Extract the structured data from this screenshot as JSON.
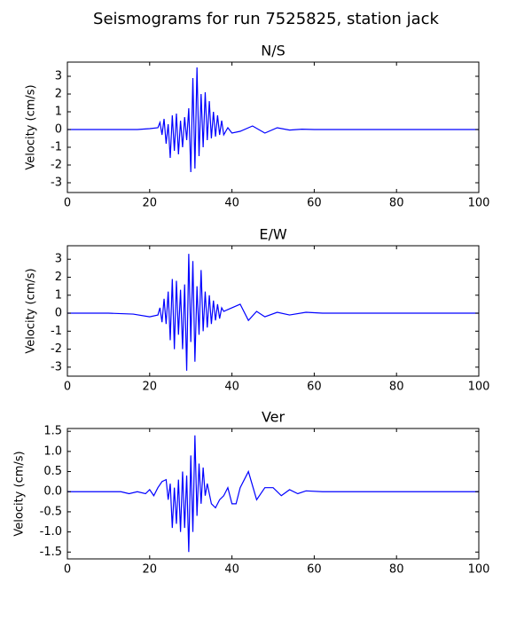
{
  "title": "Seismograms for run 7525825, station jack",
  "chart_data": [
    {
      "type": "line",
      "title": "N/S",
      "y_label": "Velocity (cm/s)",
      "color": "#0000ff",
      "xlim": [
        0,
        100
      ],
      "xticks": [
        0,
        20,
        40,
        60,
        80,
        100
      ],
      "ylim": [
        -3.55,
        3.8
      ],
      "yticks": [
        -3,
        -2,
        -1,
        0,
        1,
        2,
        3
      ],
      "x": [
        0,
        10,
        17,
        20,
        22,
        22.5,
        23,
        23.5,
        24,
        24.5,
        25,
        25.5,
        26,
        26.5,
        27,
        27.5,
        28,
        28.5,
        29,
        29.5,
        30,
        30.5,
        31,
        31.5,
        32,
        32.5,
        33,
        33.5,
        34,
        34.5,
        35,
        35.5,
        36,
        36.5,
        37,
        37.5,
        38,
        39,
        40,
        42,
        45,
        48,
        51,
        54,
        57,
        60,
        100
      ],
      "values": [
        0,
        0,
        0,
        0.05,
        0.1,
        0.4,
        -0.3,
        0.6,
        -0.8,
        0.3,
        -1.6,
        0.8,
        -1.2,
        0.9,
        -1.4,
        0.5,
        -1.0,
        0.7,
        -0.6,
        1.2,
        -2.4,
        2.9,
        -2.2,
        3.5,
        -1.5,
        2.0,
        -1.0,
        2.1,
        -0.6,
        1.6,
        -0.5,
        1.0,
        -0.4,
        0.8,
        -0.3,
        0.5,
        -0.3,
        0.1,
        -0.2,
        -0.1,
        0.2,
        -0.2,
        0.1,
        -0.03,
        0.02,
        0,
        0
      ]
    },
    {
      "type": "line",
      "title": "E/W",
      "y_label": "Velocity (cm/s)",
      "color": "#0000ff",
      "xlim": [
        0,
        100
      ],
      "xticks": [
        0,
        20,
        40,
        60,
        80,
        100
      ],
      "ylim": [
        -3.5,
        3.75
      ],
      "yticks": [
        -3,
        -2,
        -1,
        0,
        1,
        2,
        3
      ],
      "x": [
        0,
        10,
        16,
        20,
        22,
        22.5,
        23,
        23.5,
        24,
        24.5,
        25,
        25.5,
        26,
        26.5,
        27,
        27.5,
        28,
        28.5,
        29,
        29.5,
        30,
        30.5,
        31,
        31.5,
        32,
        32.5,
        33,
        33.5,
        34,
        34.5,
        35,
        35.5,
        36,
        36.5,
        37,
        37.5,
        38,
        39,
        40,
        42,
        44,
        46,
        48,
        51,
        54,
        58,
        62,
        100
      ],
      "values": [
        0,
        0,
        -0.05,
        -0.2,
        -0.1,
        0.3,
        -0.5,
        0.8,
        -0.6,
        1.2,
        -1.5,
        1.9,
        -2.0,
        1.8,
        -1.2,
        1.3,
        -2.0,
        1.6,
        -3.2,
        3.3,
        -1.6,
        2.9,
        -2.7,
        1.5,
        -1.2,
        2.4,
        -1.0,
        1.2,
        -0.8,
        1.0,
        -0.6,
        0.7,
        -0.4,
        0.5,
        -0.3,
        0.3,
        0.1,
        0.2,
        0.3,
        0.5,
        -0.4,
        0.1,
        -0.2,
        0.05,
        -0.1,
        0.05,
        0,
        0
      ]
    },
    {
      "type": "line",
      "title": "Ver",
      "y_label": "Velocity (cm/s)",
      "color": "#0000ff",
      "xlim": [
        0,
        100
      ],
      "xticks": [
        0,
        20,
        40,
        60,
        80,
        100
      ],
      "ylim": [
        -1.67,
        1.57
      ],
      "yticks": [
        {
          "value": -1.5,
          "label": "-1.5"
        },
        {
          "value": -1,
          "label": "-1.0"
        },
        {
          "value": -0.5,
          "label": "-0.5"
        },
        {
          "value": 0,
          "label": "0.0"
        },
        {
          "value": 0.5,
          "label": "0.5"
        },
        {
          "value": 1,
          "label": "1.0"
        },
        {
          "value": 1.5,
          "label": "1.5"
        }
      ],
      "x": [
        0,
        13,
        15,
        17,
        19,
        20,
        21,
        22,
        23,
        24,
        24.5,
        25,
        25.5,
        26,
        26.5,
        27,
        27.5,
        28,
        28.5,
        29,
        29.5,
        30,
        30.5,
        31,
        31.5,
        32,
        32.5,
        33,
        33.5,
        34,
        35,
        36,
        37,
        38,
        39,
        40,
        41,
        42,
        44,
        46,
        48,
        50,
        52,
        54,
        56,
        58,
        62,
        100
      ],
      "values": [
        0,
        0,
        -0.05,
        0,
        -0.05,
        0.05,
        -0.1,
        0.1,
        0.25,
        0.3,
        -0.2,
        0.2,
        -0.9,
        0.1,
        -0.8,
        0.3,
        -1.0,
        0.5,
        -0.9,
        0.4,
        -1.5,
        0.9,
        -1.0,
        1.4,
        -0.6,
        0.7,
        -0.3,
        0.6,
        -0.1,
        0.2,
        -0.3,
        -0.4,
        -0.2,
        -0.1,
        0.1,
        -0.3,
        -0.3,
        0.1,
        0.5,
        -0.2,
        0.1,
        0.1,
        -0.1,
        0.05,
        -0.05,
        0.02,
        0,
        0
      ]
    }
  ]
}
